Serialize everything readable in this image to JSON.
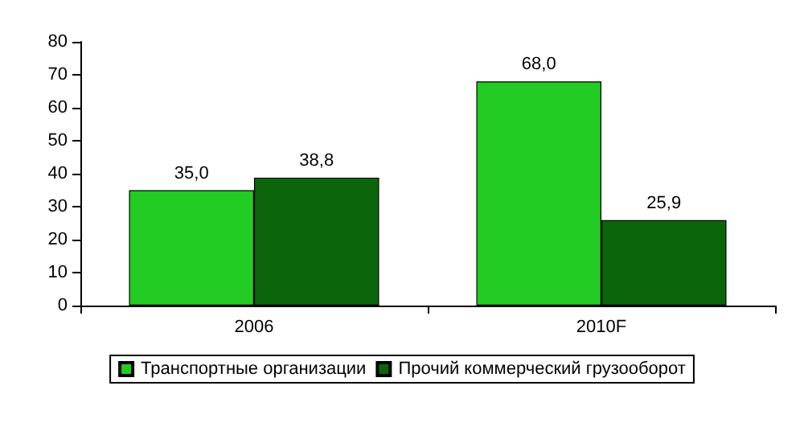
{
  "chart_data": {
    "type": "bar",
    "categories": [
      "2006",
      "2010F"
    ],
    "series": [
      {
        "name": "Транспортные организации",
        "color": "#22cc22",
        "values": [
          35.0,
          68.0
        ],
        "value_labels": [
          "35,0",
          "68,0"
        ]
      },
      {
        "name": "Прочий коммерческий грузооборот",
        "color": "#0b660b",
        "values": [
          38.8,
          25.9
        ],
        "value_labels": [
          "38,8",
          "25,9"
        ]
      }
    ],
    "ylim": [
      0,
      80
    ],
    "yticks": [
      0,
      10,
      20,
      30,
      40,
      50,
      60,
      70,
      80
    ],
    "grid": false,
    "legend": "bottom"
  }
}
